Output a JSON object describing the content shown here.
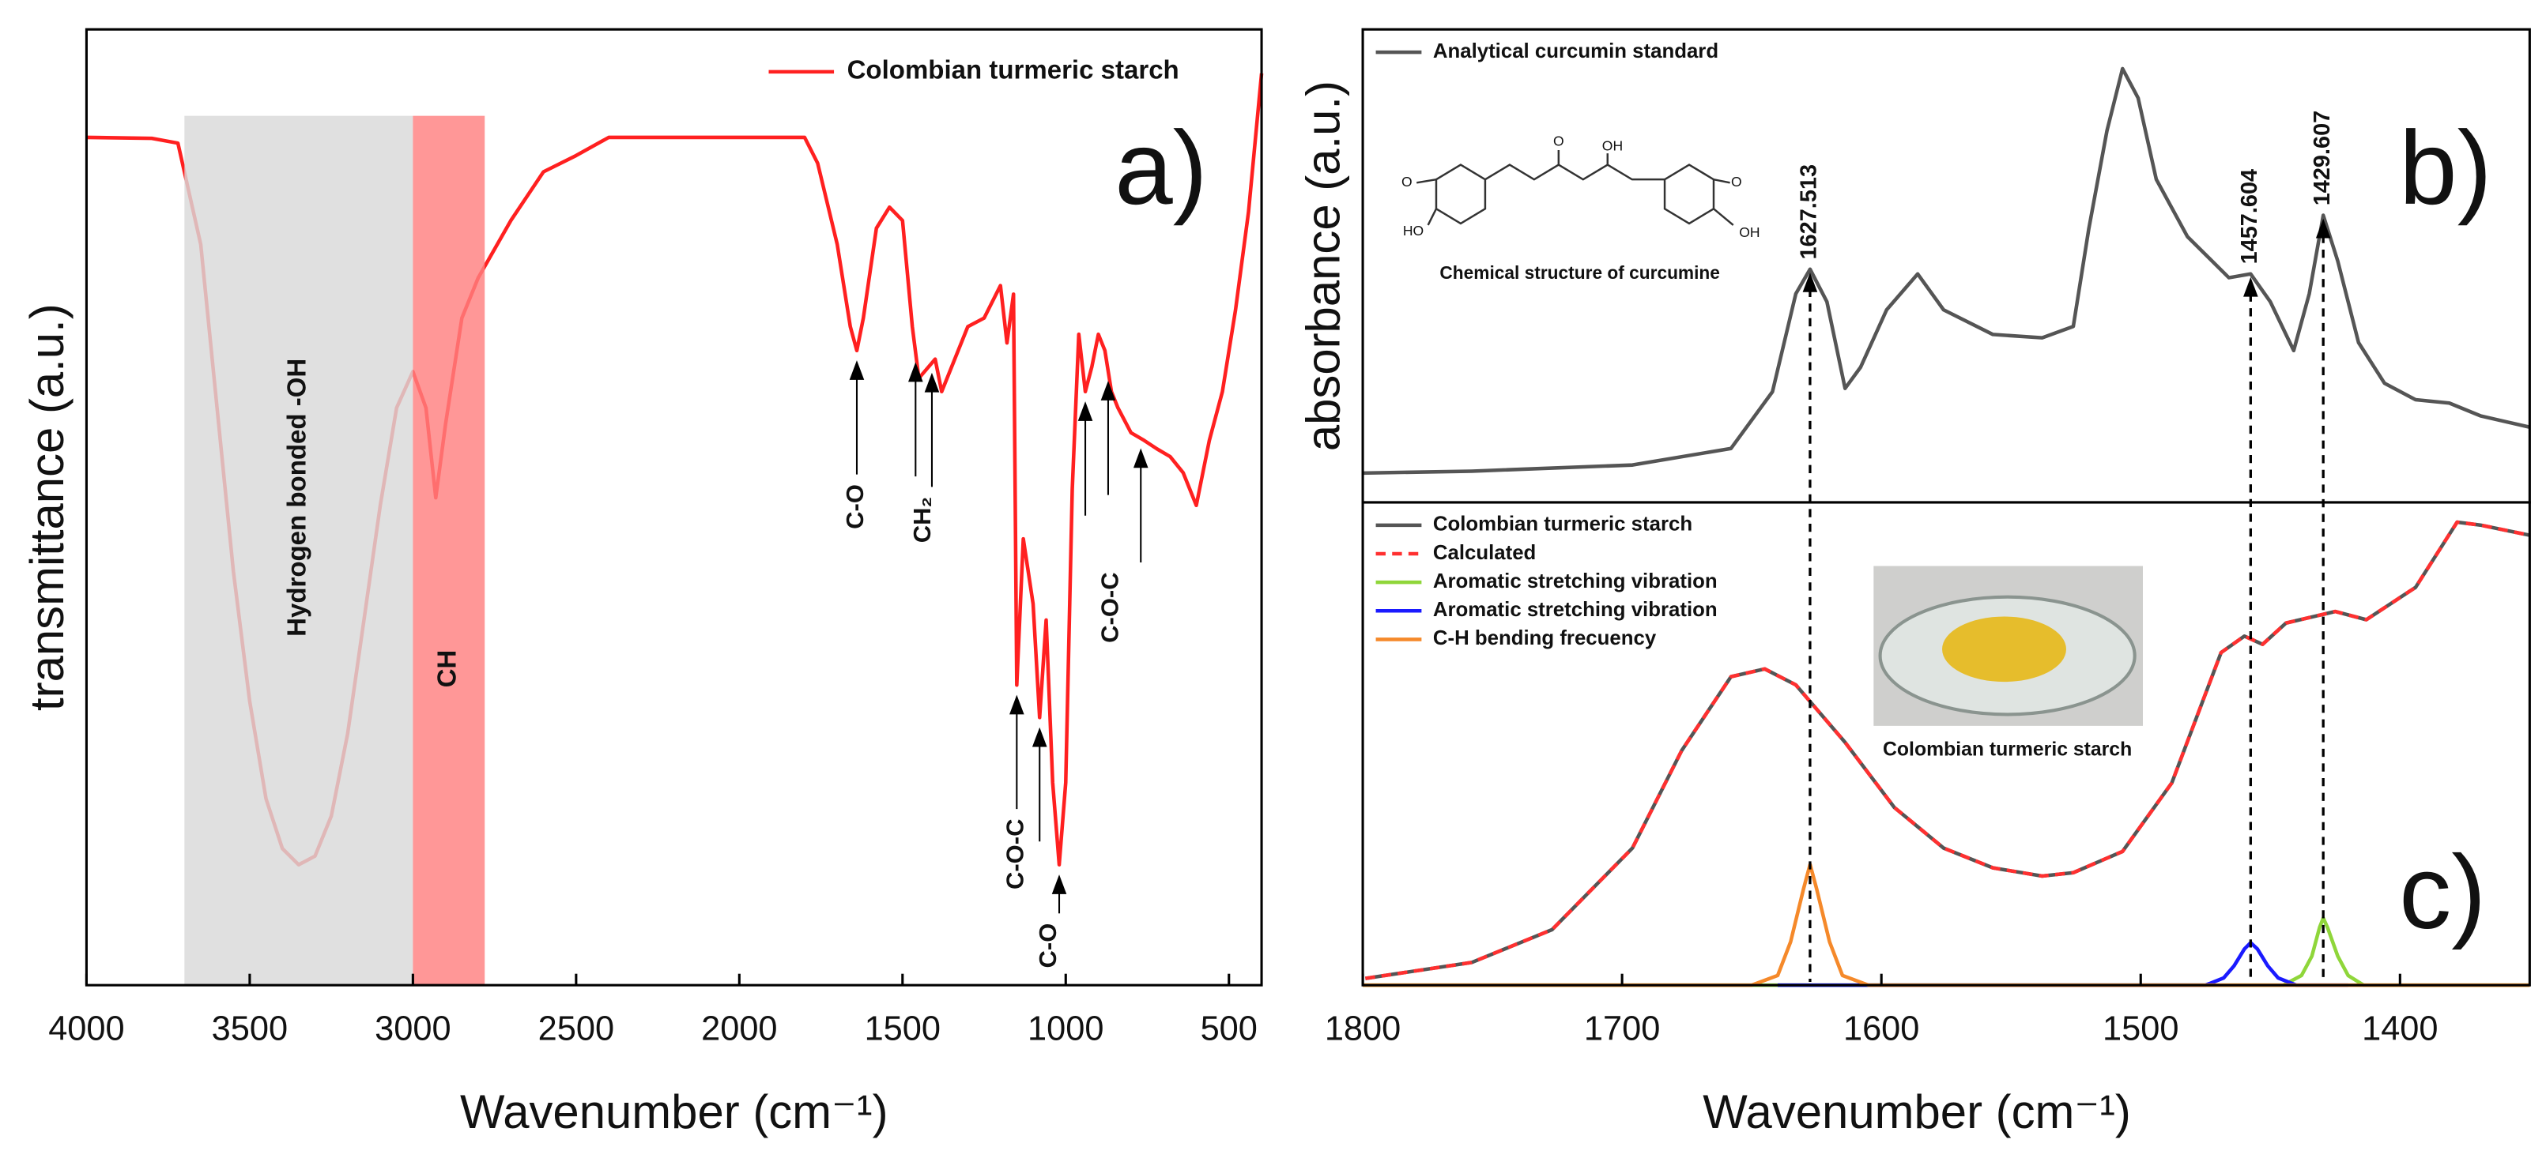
{
  "chart_data": [
    {
      "type": "line",
      "ylabel": "transmittance (a.u.)",
      "xlabel": "Wavenumber (cm⁻¹)",
      "panel_label": "a)",
      "xlim": [
        4000,
        400
      ],
      "ylim": [
        0,
        100
      ],
      "xticks": [
        4000,
        3500,
        3000,
        2500,
        2000,
        1500,
        1000,
        500
      ],
      "legend": "upper right",
      "x": [
        4000,
        3800,
        3720,
        3650,
        3600,
        3550,
        3500,
        3450,
        3400,
        3350,
        3300,
        3250,
        3200,
        3150,
        3100,
        3050,
        3000,
        2960,
        2930,
        2900,
        2850,
        2800,
        2700,
        2600,
        2500,
        2400,
        2000,
        1800,
        1760,
        1700,
        1660,
        1640,
        1620,
        1580,
        1540,
        1500,
        1470,
        1450,
        1420,
        1400,
        1380,
        1340,
        1300,
        1250,
        1200,
        1180,
        1160,
        1150,
        1130,
        1100,
        1080,
        1060,
        1040,
        1020,
        1000,
        980,
        960,
        940,
        920,
        900,
        880,
        860,
        840,
        800,
        760,
        720,
        680,
        640,
        600,
        560,
        520,
        480,
        440,
        400
      ],
      "series": [
        {
          "name": "Colombian turmeric starch",
          "color": "#ff2020",
          "values": [
            88.7,
            88.6,
            88.1,
            77.5,
            60.4,
            43.3,
            29.7,
            19.5,
            14.3,
            12.6,
            13.5,
            17.7,
            26.3,
            38.2,
            50.2,
            60.4,
            64.2,
            60.4,
            51.0,
            58.7,
            69.8,
            74.0,
            80.0,
            85.1,
            86.8,
            88.7,
            88.7,
            88.7,
            86.0,
            77.5,
            68.9,
            66.4,
            69.8,
            79.2,
            81.4,
            80.0,
            68.9,
            63.5,
            64.7,
            65.5,
            62.1,
            65.5,
            68.9,
            69.8,
            73.2,
            67.2,
            72.3,
            31.4,
            46.7,
            39.9,
            28.0,
            38.2,
            21.2,
            12.6,
            21.2,
            51.9,
            68.1,
            62.1,
            64.7,
            68.1,
            66.4,
            62.1,
            60.4,
            57.8,
            57.0,
            56.1,
            55.3,
            53.6,
            50.2,
            57.0,
            62.1,
            70.6,
            80.9,
            95.4
          ]
        }
      ],
      "regions": [
        {
          "label": "Hydrogen bonded -OH",
          "xlim": [
            3700,
            3000
          ],
          "color": "#d9d9d9"
        },
        {
          "label": "CH",
          "xlim": [
            3000,
            2780
          ],
          "color": "#ff8080"
        }
      ],
      "annotations": [
        {
          "text": "C-O",
          "x": [
            1640
          ]
        },
        {
          "text": "CH₂",
          "x": [
            1460,
            1410
          ]
        },
        {
          "text": "C-O-C",
          "x": [
            940,
            870,
            770
          ]
        },
        {
          "text": "C-O-C",
          "x": [
            1150
          ]
        },
        {
          "text": "C-O",
          "x": [
            1080,
            1020
          ]
        }
      ]
    },
    {
      "type": "line",
      "ylabel": "absorbance (a.u.)",
      "panel_label": "b)",
      "xlim": [
        1800,
        1350
      ],
      "ylim": [
        0,
        100
      ],
      "legend": "upper left",
      "x": [
        1800,
        1758,
        1696,
        1658,
        1642,
        1633,
        1627.5,
        1621,
        1614,
        1608,
        1598,
        1586,
        1576,
        1557,
        1538,
        1526,
        1520,
        1513,
        1507,
        1501,
        1494,
        1482,
        1466,
        1457.6,
        1450,
        1441,
        1435,
        1429.6,
        1424,
        1416,
        1406,
        1394,
        1381,
        1369,
        1350
      ],
      "series": [
        {
          "name": "Analytical curcumin standard",
          "color": "#555555",
          "values": [
            6.2,
            6.6,
            7.9,
            11.4,
            23.4,
            44.1,
            49.3,
            42.4,
            24.1,
            28.6,
            40.7,
            48.3,
            40.7,
            35.5,
            34.8,
            37.2,
            57.9,
            78.6,
            91.7,
            85.5,
            68.3,
            56.2,
            47.5,
            48.3,
            42.4,
            32.1,
            44.1,
            60.7,
            51.0,
            33.8,
            25.2,
            21.7,
            21.0,
            18.3,
            15.9
          ]
        }
      ],
      "peaks": [
        1627.513,
        1457.604,
        1429.607
      ],
      "structure": {
        "caption": "Chemical structure of curcumine",
        "atoms": [
          "O",
          "HO",
          "O",
          "OH",
          "O",
          "OH"
        ]
      }
    },
    {
      "type": "line",
      "xlabel": "Wavenumber (cm⁻¹)",
      "panel_label": "c)",
      "xlim": [
        1800,
        1350
      ],
      "ylim": [
        0,
        100
      ],
      "xticks": [
        1800,
        1700,
        1600,
        1500,
        1400
      ],
      "legend": "upper left",
      "x": [
        1799,
        1758,
        1727,
        1696,
        1677,
        1658,
        1645,
        1633,
        1614,
        1595,
        1576,
        1557,
        1538,
        1526,
        1507,
        1488,
        1469,
        1460,
        1453,
        1444,
        1425,
        1413,
        1394,
        1378,
        1369,
        1350
      ],
      "series": [
        {
          "name": "Colombian turmeric starch",
          "color": "#555555",
          "values": [
            1.4,
            4.7,
            11.5,
            28.4,
            48.6,
            63.9,
            65.5,
            62.2,
            50.3,
            36.8,
            28.4,
            24.3,
            22.6,
            23.3,
            27.7,
            41.9,
            68.9,
            72.3,
            70.6,
            75.0,
            77.4,
            75.7,
            82.4,
            95.9,
            95.3,
            93.2
          ]
        },
        {
          "name": "Calculated",
          "color": "#ff3030",
          "dashed": true,
          "values": [
            1.4,
            4.7,
            11.5,
            28.4,
            48.6,
            63.9,
            65.5,
            62.2,
            50.3,
            36.8,
            28.4,
            24.3,
            22.6,
            23.3,
            27.7,
            41.9,
            68.9,
            72.3,
            70.6,
            75.0,
            77.4,
            75.7,
            82.4,
            95.9,
            95.3,
            93.2
          ]
        },
        {
          "name": "Aromatic stretching vibration",
          "color": "#8fd63a",
          "x": [
            1800,
            1445,
            1438,
            1434,
            1431,
            1429.6,
            1428,
            1424,
            1420,
            1414,
            1350
          ],
          "values": [
            0,
            0,
            2,
            6,
            12,
            13.9,
            12,
            6,
            2,
            0,
            0
          ]
        },
        {
          "name": "Aromatic stretching vibration",
          "color": "#1a1aff",
          "x": [
            1640,
            1475,
            1468,
            1464,
            1460,
            1457.6,
            1455,
            1451,
            1447,
            1440,
            1420
          ],
          "values": [
            0,
            0,
            1.5,
            4,
            7.5,
            8.8,
            7.5,
            4,
            1.5,
            0,
            0
          ]
        },
        {
          "name": "C-H bending frecuency",
          "color": "#f5892a",
          "x": [
            1800,
            1650,
            1640,
            1635,
            1630,
            1627.5,
            1625,
            1620,
            1615,
            1605,
            1350
          ],
          "values": [
            0,
            0,
            2,
            9,
            20,
            25,
            20,
            9,
            2,
            0,
            0
          ]
        }
      ],
      "photo_caption": "Colombian turmeric starch"
    }
  ]
}
